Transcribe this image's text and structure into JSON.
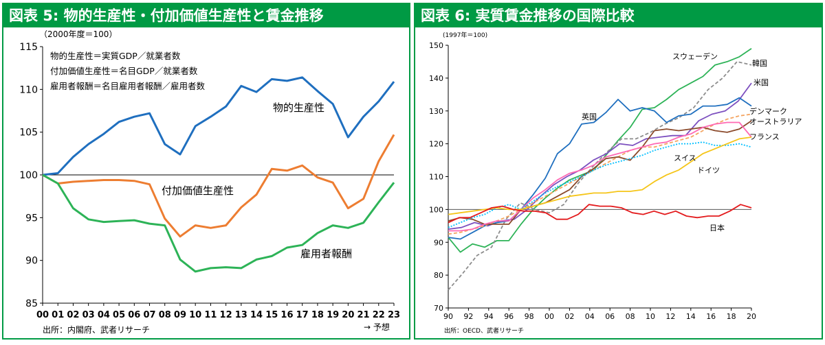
{
  "chart_data": [
    {
      "type": "line",
      "title": "図表 5: 物的生産性・付加価値生産性と賃金推移",
      "unit_note": "（2000年度＝100）",
      "definitions": [
        "物的生産性＝実質GDP／就業者数",
        "付加価値生産性＝名目GDP／就業者数",
        "雇用者報酬＝名目雇用者報酬／雇用者数"
      ],
      "x": [
        "00",
        "01",
        "02",
        "03",
        "04",
        "05",
        "06",
        "07",
        "08",
        "09",
        "10",
        "11",
        "12",
        "13",
        "14",
        "15",
        "16",
        "17",
        "18",
        "19",
        "20",
        "21",
        "22",
        "23"
      ],
      "ylim": [
        85,
        115
      ],
      "yticks": [
        85,
        90,
        95,
        100,
        105,
        110,
        115
      ],
      "reference_line": 100,
      "forecast_label": "→ 予想",
      "source": "出所：内閣府、武者リサーチ",
      "series": [
        {
          "name": "物的生産性",
          "color": "#1f6fbf",
          "values": [
            100,
            100.2,
            102.1,
            103.6,
            104.8,
            106.2,
            106.8,
            107.2,
            103.6,
            102.4,
            105.7,
            106.8,
            108.0,
            110.4,
            109.7,
            111.2,
            111.0,
            111.4,
            109.8,
            108.3,
            104.4,
            106.8,
            108.6,
            110.9
          ]
        },
        {
          "name": "付加価値生産性",
          "color": "#ed7d31",
          "values": [
            100,
            99.0,
            99.2,
            99.3,
            99.4,
            99.4,
            99.3,
            98.9,
            94.9,
            92.8,
            94.1,
            93.8,
            94.1,
            96.2,
            97.7,
            100.7,
            100.5,
            101.1,
            99.7,
            99.1,
            96.1,
            97.2,
            101.6,
            104.7
          ]
        },
        {
          "name": "雇用者報酬",
          "color": "#2db357",
          "values": [
            100,
            99.0,
            96.1,
            94.8,
            94.5,
            94.6,
            94.7,
            94.3,
            94.1,
            90.1,
            88.7,
            89.1,
            89.2,
            89.1,
            90.1,
            90.5,
            91.5,
            91.8,
            93.2,
            94.1,
            93.8,
            94.4,
            96.8,
            99.1
          ]
        }
      ]
    },
    {
      "type": "line",
      "title": "図表 6: 実質賃金推移の国際比較",
      "unit_note": "(1997年＝100)",
      "x_start": 1990,
      "x_end": 2020,
      "xticks": [
        "90",
        "92",
        "94",
        "96",
        "98",
        "00",
        "02",
        "04",
        "06",
        "08",
        "10",
        "12",
        "14",
        "16",
        "18",
        "20"
      ],
      "ylim": [
        70,
        150
      ],
      "yticks": [
        70,
        80,
        90,
        100,
        110,
        120,
        130,
        140,
        150
      ],
      "reference_line": 100,
      "source": "出所：OECD、武者リサーチ",
      "series": [
        {
          "name": "スウェーデン",
          "color": "#2db357",
          "dash": "",
          "values": [
            91.5,
            87.0,
            89.5,
            88.5,
            90.5,
            90.5,
            95.5,
            100.0,
            103.5,
            106.5,
            109.0,
            110.5,
            112.0,
            116.5,
            121.0,
            125.0,
            130.5,
            131.0,
            133.5,
            136.5,
            138.5,
            140.5,
            144.0,
            145.0,
            146.5,
            149.0
          ]
        },
        {
          "name": "韓国",
          "color": "#8c8c8c",
          "dash": "5,3",
          "values": [
            75.5,
            80.5,
            86.0,
            88.5,
            97.0,
            102.0,
            100.0,
            99.0,
            101.5,
            108.0,
            113.0,
            117.5,
            121.5,
            121.5,
            123.5,
            126.0,
            128.0,
            131.0,
            136.5,
            140.0,
            145.0,
            144.0
          ]
        },
        {
          "name": "米国",
          "color": "#7c4fbf",
          "dash": "",
          "values": [
            94.0,
            94.5,
            96.0,
            95.0,
            96.5,
            97.0,
            100.0,
            104.0,
            107.5,
            110.0,
            112.0,
            115.0,
            117.0,
            120.0,
            119.5,
            121.5,
            122.0,
            122.5,
            122.5,
            127.0,
            129.0,
            130.0,
            133.0,
            138.5
          ]
        },
        {
          "name": "英国",
          "color": "#1f6fbf",
          "dash": "",
          "values": [
            91.5,
            91.0,
            93.0,
            95.0,
            96.0,
            96.5,
            100.0,
            104.5,
            109.5,
            117.0,
            120.0,
            126.0,
            126.5,
            129.5,
            133.5,
            130.0,
            131.0,
            130.0,
            126.5,
            128.5,
            129.0,
            131.5,
            131.5,
            132.0,
            134.0,
            131.5
          ]
        },
        {
          "name": "デンマーク",
          "color": "#f4a460",
          "dash": "5,3",
          "values": [
            92.5,
            93.0,
            94.0,
            95.0,
            96.5,
            98.0,
            100.0,
            102.0,
            104.0,
            106.0,
            108.0,
            110.0,
            112.0,
            114.0,
            116.0,
            118.0,
            119.0,
            119.0,
            120.0,
            121.0,
            122.0,
            124.0,
            126.0,
            127.5,
            128.5,
            129.0
          ]
        },
        {
          "name": "オーストラリア",
          "color": "#8b4a2b",
          "dash": "",
          "values": [
            96.5,
            97.5,
            97.0,
            95.5,
            95.5,
            95.5,
            100.0,
            101.0,
            102.0,
            104.0,
            106.0,
            110.0,
            112.5,
            115.5,
            116.0,
            115.0,
            119.0,
            124.0,
            124.5,
            124.0,
            124.5,
            125.0,
            124.0,
            123.5,
            124.5,
            127.0
          ]
        },
        {
          "name": "フランス",
          "color": "#ff69b4",
          "dash": "",
          "values": [
            93.5,
            93.5,
            94.0,
            95.5,
            96.5,
            96.5,
            100.0,
            103.5,
            106.0,
            109.0,
            111.0,
            112.0,
            113.5,
            116.0,
            117.0,
            118.0,
            119.0,
            120.0,
            120.5,
            122.0,
            123.0,
            125.0,
            126.0,
            126.5,
            126.5,
            122.0
          ]
        },
        {
          "name": "スイス",
          "color": "#00bfff",
          "dash": "2,2",
          "values": [
            94.5,
            96.0,
            97.5,
            98.5,
            100.5,
            101.5,
            100.0,
            102.5,
            105.0,
            107.0,
            108.5,
            110.0,
            112.0,
            113.5,
            114.5,
            115.5,
            116.5,
            118.0,
            119.0,
            120.0,
            120.0,
            120.5,
            119.5,
            119.5,
            120.0,
            119.0
          ]
        },
        {
          "name": "ドイツ",
          "color": "#f5c518",
          "dash": "",
          "values": [
            98.5,
            99.0,
            99.5,
            100.0,
            100.5,
            100.0,
            100.0,
            101.0,
            102.0,
            103.0,
            104.0,
            104.5,
            105.0,
            105.0,
            105.5,
            105.5,
            106.0,
            108.5,
            110.5,
            112.0,
            114.5,
            117.0,
            118.5,
            120.0,
            121.5,
            122.0
          ]
        },
        {
          "name": "日本",
          "color": "#e31a1c",
          "dash": "",
          "values": [
            96.0,
            97.5,
            97.5,
            99.0,
            100.5,
            101.0,
            100.0,
            99.5,
            99.5,
            99.0,
            97.0,
            97.0,
            98.5,
            101.5,
            101.0,
            101.0,
            100.5,
            99.0,
            98.5,
            99.5,
            98.5,
            99.5,
            98.0,
            97.5,
            98.0,
            98.0,
            99.5,
            101.5,
            100.5
          ]
        }
      ]
    }
  ]
}
